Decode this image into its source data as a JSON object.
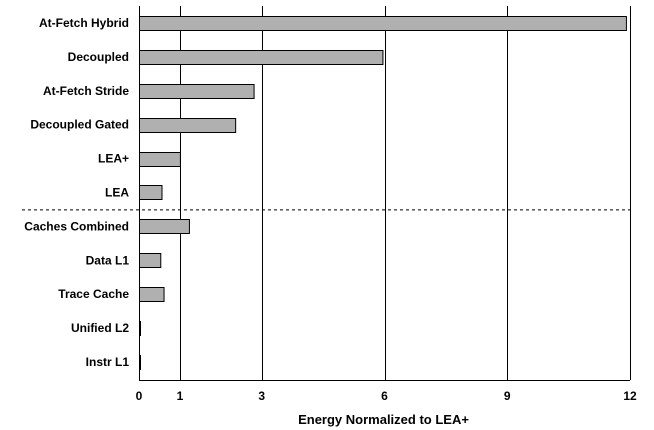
{
  "chart_data": {
    "type": "bar",
    "orientation": "horizontal",
    "title": "",
    "xlabel": "Energy Normalized to LEA+",
    "ylabel": "",
    "xlim": [
      0,
      12
    ],
    "xticks": [
      0,
      1,
      3,
      6,
      9,
      12
    ],
    "grid": "vertical",
    "legend": "none",
    "bar_color": "#b0b0b0",
    "bar_edge_color": "#000000",
    "separator_after_index": 5,
    "categories": [
      "At-Fetch Hybrid",
      "Decoupled",
      "At-Fetch Stride",
      "Decoupled Gated",
      "LEA+",
      "LEA",
      "Caches Combined",
      "Data L1",
      "Trace Cache",
      "Unified L2",
      "Instr L1"
    ],
    "values": [
      11.9,
      5.95,
      2.8,
      2.35,
      1.0,
      0.55,
      1.22,
      0.52,
      0.6,
      0.02,
      0.02
    ]
  }
}
